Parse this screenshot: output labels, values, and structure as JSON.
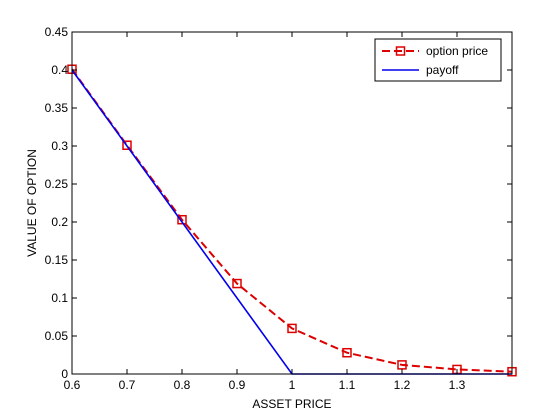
{
  "chart_data": {
    "type": "line",
    "title": "",
    "xlabel": "ASSET PRICE",
    "ylabel": "VALUE OF OPTION",
    "xlim": [
      0.6,
      1.4
    ],
    "ylim": [
      0,
      0.45
    ],
    "xticks": [
      0.6,
      0.7,
      0.8,
      0.9,
      1.0,
      1.1,
      1.2,
      1.3
    ],
    "xtick_labels": [
      "0.6",
      "0.7",
      "0.8",
      "0.9",
      "1",
      "1.1",
      "1.2",
      "1.3"
    ],
    "yticks": [
      0,
      0.05,
      0.1,
      0.15,
      0.2,
      0.25,
      0.3,
      0.35,
      0.4,
      0.45
    ],
    "ytick_labels": [
      "0",
      "0.05",
      "0.1",
      "0.15",
      "0.2",
      "0.25",
      "0.3",
      "0.35",
      "0.4",
      "0.45"
    ],
    "grid": false,
    "legend_position": "top-right",
    "series": [
      {
        "name": "option price",
        "color": "#dd0000",
        "line_style": "dashed",
        "marker": "square",
        "x": [
          0.6,
          0.7,
          0.8,
          0.9,
          1.0,
          1.1,
          1.2,
          1.3,
          1.4
        ],
        "y": [
          0.401,
          0.301,
          0.203,
          0.119,
          0.06,
          0.028,
          0.012,
          0.006,
          0.003
        ]
      },
      {
        "name": "payoff",
        "color": "#0000ee",
        "line_style": "solid",
        "marker": "none",
        "x": [
          0.6,
          1.0,
          1.4
        ],
        "y": [
          0.4,
          0.0,
          0.0
        ]
      }
    ]
  }
}
